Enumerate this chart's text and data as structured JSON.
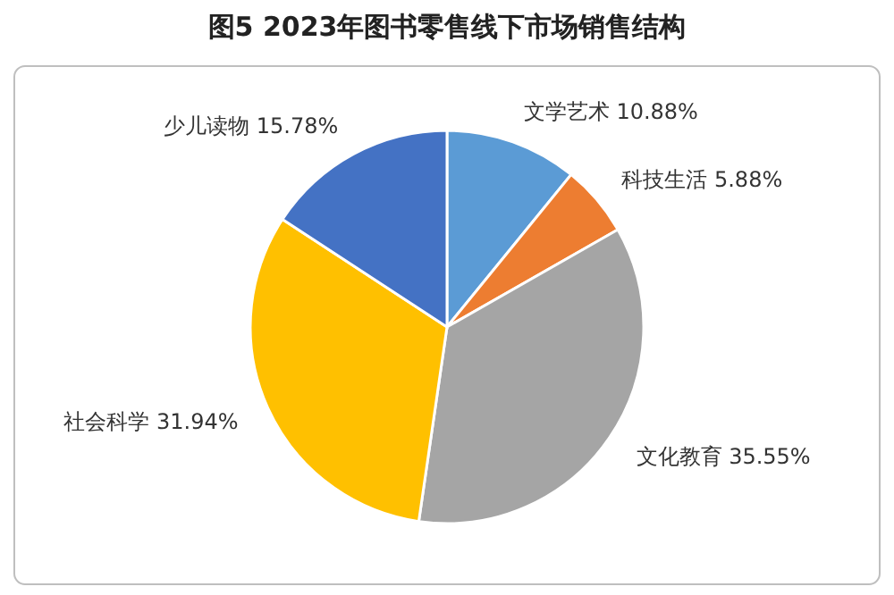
{
  "chart_data": {
    "type": "pie",
    "title": "图5 2023年图书零售线下市场销售结构",
    "categories": [
      "文学艺术",
      "科技生活",
      "文化教育",
      "社会科学",
      "少儿读物"
    ],
    "values": [
      10.88,
      5.88,
      35.55,
      31.94,
      15.78
    ],
    "value_labels": [
      "10.88%",
      "5.88%",
      "35.55%",
      "31.94%",
      "15.78%"
    ],
    "colors": [
      "#5b9bd5",
      "#ed7d31",
      "#a5a5a5",
      "#ffc000",
      "#4472c4"
    ],
    "legend": false
  }
}
